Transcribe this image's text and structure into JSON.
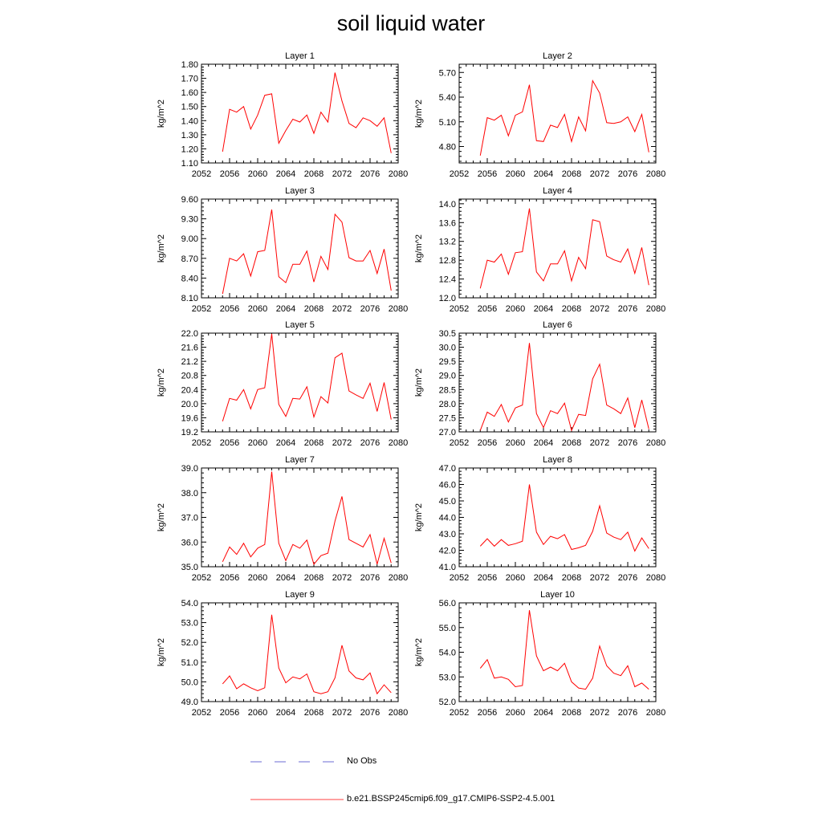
{
  "title": "soil liquid water",
  "legend": {
    "obs_label": "No Obs",
    "obs_color": "#6b6bd6",
    "model_label": "b.e21.BSSP245cmip6.f09_g17.CMIP6-SSP2-4.5.001",
    "model_color": "#ff0000"
  },
  "chart_data": [
    {
      "type": "line",
      "title": "Layer 1",
      "ylabel": "kg/m^2",
      "xlim": [
        2052,
        2080
      ],
      "xticks": [
        "2052",
        "2056",
        "2060",
        "2064",
        "2068",
        "2072",
        "2076",
        "2080"
      ],
      "ylim": [
        1.1,
        1.8
      ],
      "yticks": [
        "1.10",
        "1.20",
        "1.30",
        "1.40",
        "1.50",
        "1.60",
        "1.70",
        "1.80"
      ],
      "x": [
        2055,
        2056,
        2057,
        2058,
        2059,
        2060,
        2061,
        2062,
        2063,
        2064,
        2065,
        2066,
        2067,
        2068,
        2069,
        2070,
        2071,
        2072,
        2073,
        2074,
        2075,
        2076,
        2077,
        2078,
        2079
      ],
      "series": [
        {
          "values": [
            1.18,
            1.48,
            1.46,
            1.5,
            1.34,
            1.44,
            1.58,
            1.59,
            1.24,
            1.33,
            1.41,
            1.39,
            1.44,
            1.31,
            1.46,
            1.39,
            1.74,
            1.54,
            1.38,
            1.35,
            1.42,
            1.4,
            1.36,
            1.42,
            1.17
          ]
        }
      ]
    },
    {
      "type": "line",
      "title": "Layer 2",
      "ylabel": "kg/m^2",
      "xlim": [
        2052,
        2080
      ],
      "xticks": [
        "2052",
        "2056",
        "2060",
        "2064",
        "2068",
        "2072",
        "2076",
        "2080"
      ],
      "ylim": [
        4.6,
        5.8
      ],
      "yticks": [
        "4.80",
        "5.10",
        "5.40",
        "5.70"
      ],
      "x": [
        2055,
        2056,
        2057,
        2058,
        2059,
        2060,
        2061,
        2062,
        2063,
        2064,
        2065,
        2066,
        2067,
        2068,
        2069,
        2070,
        2071,
        2072,
        2073,
        2074,
        2075,
        2076,
        2077,
        2078,
        2079
      ],
      "series": [
        {
          "values": [
            4.69,
            5.15,
            5.12,
            5.18,
            4.93,
            5.18,
            5.22,
            5.55,
            4.87,
            4.86,
            5.06,
            5.03,
            5.19,
            4.86,
            5.16,
            4.99,
            5.6,
            5.45,
            5.09,
            5.08,
            5.1,
            5.16,
            4.98,
            5.19,
            4.73
          ]
        }
      ]
    },
    {
      "type": "line",
      "title": "Layer 3",
      "ylabel": "kg/m^2",
      "xlim": [
        2052,
        2080
      ],
      "xticks": [
        "2052",
        "2056",
        "2060",
        "2064",
        "2068",
        "2072",
        "2076",
        "2080"
      ],
      "ylim": [
        8.1,
        9.6
      ],
      "yticks": [
        "8.10",
        "8.40",
        "8.70",
        "9.00",
        "9.30",
        "9.60"
      ],
      "x": [
        2055,
        2056,
        2057,
        2058,
        2059,
        2060,
        2061,
        2062,
        2063,
        2064,
        2065,
        2066,
        2067,
        2068,
        2069,
        2070,
        2071,
        2072,
        2073,
        2074,
        2075,
        2076,
        2077,
        2078,
        2079
      ],
      "series": [
        {
          "values": [
            8.16,
            8.7,
            8.66,
            8.77,
            8.43,
            8.8,
            8.82,
            9.44,
            8.42,
            8.33,
            8.61,
            8.61,
            8.81,
            8.34,
            8.73,
            8.53,
            9.37,
            9.25,
            8.71,
            8.66,
            8.66,
            8.82,
            8.47,
            8.84,
            8.21
          ]
        }
      ]
    },
    {
      "type": "line",
      "title": "Layer 4",
      "ylabel": "kg/m^2",
      "xlim": [
        2052,
        2080
      ],
      "xticks": [
        "2052",
        "2056",
        "2060",
        "2064",
        "2068",
        "2072",
        "2076",
        "2080"
      ],
      "ylim": [
        12.0,
        14.1
      ],
      "yticks": [
        "12.0",
        "12.4",
        "12.8",
        "13.2",
        "13.6",
        "14.0"
      ],
      "x": [
        2055,
        2056,
        2057,
        2058,
        2059,
        2060,
        2061,
        2062,
        2063,
        2064,
        2065,
        2066,
        2067,
        2068,
        2069,
        2070,
        2071,
        2072,
        2073,
        2074,
        2075,
        2076,
        2077,
        2078,
        2079
      ],
      "series": [
        {
          "values": [
            12.2,
            12.8,
            12.76,
            12.93,
            12.5,
            12.96,
            12.98,
            13.9,
            12.55,
            12.36,
            12.72,
            12.72,
            13.0,
            12.36,
            12.86,
            12.62,
            13.66,
            13.62,
            12.89,
            12.81,
            12.76,
            13.04,
            12.52,
            13.07,
            12.27
          ]
        }
      ]
    },
    {
      "type": "line",
      "title": "Layer 5",
      "ylabel": "kg/m^2",
      "xlim": [
        2052,
        2080
      ],
      "xticks": [
        "2052",
        "2056",
        "2060",
        "2064",
        "2068",
        "2072",
        "2076",
        "2080"
      ],
      "ylim": [
        19.2,
        22.0
      ],
      "yticks": [
        "19.2",
        "19.6",
        "20.0",
        "20.4",
        "20.8",
        "21.2",
        "21.6",
        "22.0"
      ],
      "x": [
        2055,
        2056,
        2057,
        2058,
        2059,
        2060,
        2061,
        2062,
        2063,
        2064,
        2065,
        2066,
        2067,
        2068,
        2069,
        2070,
        2071,
        2072,
        2073,
        2074,
        2075,
        2076,
        2077,
        2078,
        2079
      ],
      "series": [
        {
          "values": [
            19.5,
            20.15,
            20.1,
            20.4,
            19.85,
            20.4,
            20.45,
            21.98,
            19.98,
            19.64,
            20.15,
            20.13,
            20.48,
            19.62,
            20.2,
            20.02,
            21.3,
            21.43,
            20.36,
            20.25,
            20.15,
            20.58,
            19.78,
            20.6,
            19.55
          ]
        }
      ]
    },
    {
      "type": "line",
      "title": "Layer 6",
      "ylabel": "kg/m^2",
      "xlim": [
        2052,
        2080
      ],
      "xticks": [
        "2052",
        "2056",
        "2060",
        "2064",
        "2068",
        "2072",
        "2076",
        "2080"
      ],
      "ylim": [
        27.0,
        30.5
      ],
      "yticks": [
        "27.0",
        "27.5",
        "28.0",
        "28.5",
        "29.0",
        "29.5",
        "30.0",
        "30.5"
      ],
      "x": [
        2055,
        2056,
        2057,
        2058,
        2059,
        2060,
        2061,
        2062,
        2063,
        2064,
        2065,
        2066,
        2067,
        2068,
        2069,
        2070,
        2071,
        2072,
        2073,
        2074,
        2075,
        2076,
        2077,
        2078,
        2079
      ],
      "series": [
        {
          "values": [
            27.05,
            27.7,
            27.55,
            27.97,
            27.35,
            27.85,
            27.95,
            30.15,
            27.65,
            27.15,
            27.75,
            27.65,
            28.02,
            27.05,
            27.62,
            27.58,
            28.88,
            29.4,
            27.95,
            27.82,
            27.65,
            28.2,
            27.15,
            28.13,
            27.1
          ]
        }
      ]
    },
    {
      "type": "line",
      "title": "Layer 7",
      "ylabel": "kg/m^2",
      "xlim": [
        2052,
        2080
      ],
      "xticks": [
        "2052",
        "2056",
        "2060",
        "2064",
        "2068",
        "2072",
        "2076",
        "2080"
      ],
      "ylim": [
        35.0,
        39.0
      ],
      "yticks": [
        "35.0",
        "36.0",
        "37.0",
        "38.0",
        "39.0"
      ],
      "x": [
        2055,
        2056,
        2057,
        2058,
        2059,
        2060,
        2061,
        2062,
        2063,
        2064,
        2065,
        2066,
        2067,
        2068,
        2069,
        2070,
        2071,
        2072,
        2073,
        2074,
        2075,
        2076,
        2077,
        2078,
        2079
      ],
      "series": [
        {
          "values": [
            35.2,
            35.8,
            35.5,
            35.95,
            35.4,
            35.75,
            35.9,
            38.85,
            35.95,
            35.25,
            35.9,
            35.75,
            36.08,
            35.1,
            35.45,
            35.55,
            36.85,
            37.85,
            36.1,
            35.95,
            35.8,
            36.3,
            35.1,
            36.15,
            35.15
          ]
        }
      ]
    },
    {
      "type": "line",
      "title": "Layer 8",
      "ylabel": "kg/m^2",
      "xlim": [
        2052,
        2080
      ],
      "xticks": [
        "2052",
        "2056",
        "2060",
        "2064",
        "2068",
        "2072",
        "2076",
        "2080"
      ],
      "ylim": [
        41.0,
        47.0
      ],
      "yticks": [
        "41.0",
        "42.0",
        "43.0",
        "44.0",
        "45.0",
        "46.0",
        "47.0"
      ],
      "x": [
        2055,
        2056,
        2057,
        2058,
        2059,
        2060,
        2061,
        2062,
        2063,
        2064,
        2065,
        2066,
        2067,
        2068,
        2069,
        2070,
        2071,
        2072,
        2073,
        2074,
        2075,
        2076,
        2077,
        2078,
        2079
      ],
      "series": [
        {
          "values": [
            42.25,
            42.7,
            42.25,
            42.65,
            42.3,
            42.4,
            42.55,
            46.0,
            43.1,
            42.35,
            42.85,
            42.7,
            42.95,
            42.05,
            42.15,
            42.3,
            43.15,
            44.7,
            43.05,
            42.8,
            42.65,
            43.1,
            41.95,
            42.75,
            42.1
          ]
        }
      ]
    },
    {
      "type": "line",
      "title": "Layer 9",
      "ylabel": "kg/m^2",
      "xlim": [
        2052,
        2080
      ],
      "xticks": [
        "2052",
        "2056",
        "2060",
        "2064",
        "2068",
        "2072",
        "2076",
        "2080"
      ],
      "ylim": [
        49.0,
        54.0
      ],
      "yticks": [
        "49.0",
        "50.0",
        "51.0",
        "52.0",
        "53.0",
        "54.0"
      ],
      "x": [
        2055,
        2056,
        2057,
        2058,
        2059,
        2060,
        2061,
        2062,
        2063,
        2064,
        2065,
        2066,
        2067,
        2068,
        2069,
        2070,
        2071,
        2072,
        2073,
        2074,
        2075,
        2076,
        2077,
        2078,
        2079
      ],
      "series": [
        {
          "values": [
            49.9,
            50.3,
            49.65,
            49.9,
            49.7,
            49.55,
            49.7,
            53.4,
            50.7,
            49.95,
            50.25,
            50.15,
            50.4,
            49.5,
            49.4,
            49.5,
            50.2,
            51.85,
            50.55,
            50.2,
            50.1,
            50.45,
            49.4,
            49.85,
            49.45
          ]
        }
      ]
    },
    {
      "type": "line",
      "title": "Layer 10",
      "ylabel": "kg/m^2",
      "xlim": [
        2052,
        2080
      ],
      "xticks": [
        "2052",
        "2056",
        "2060",
        "2064",
        "2068",
        "2072",
        "2076",
        "2080"
      ],
      "ylim": [
        52.0,
        56.0
      ],
      "yticks": [
        "52.0",
        "53.0",
        "54.0",
        "55.0",
        "56.0"
      ],
      "x": [
        2055,
        2056,
        2057,
        2058,
        2059,
        2060,
        2061,
        2062,
        2063,
        2064,
        2065,
        2066,
        2067,
        2068,
        2069,
        2070,
        2071,
        2072,
        2073,
        2074,
        2075,
        2076,
        2077,
        2078,
        2079
      ],
      "series": [
        {
          "values": [
            53.35,
            53.7,
            52.95,
            53.0,
            52.9,
            52.6,
            52.65,
            55.7,
            53.85,
            53.25,
            53.4,
            53.25,
            53.55,
            52.8,
            52.55,
            52.5,
            52.95,
            54.25,
            53.45,
            53.15,
            53.05,
            53.45,
            52.6,
            52.75,
            52.5
          ]
        }
      ]
    }
  ]
}
